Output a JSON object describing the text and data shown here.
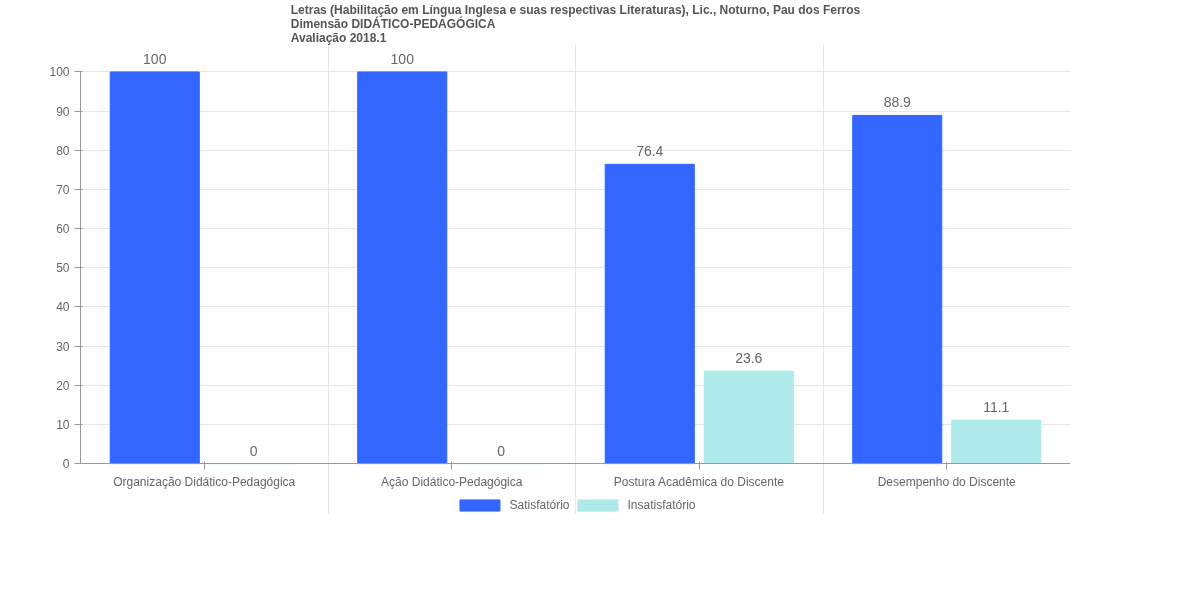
{
  "chart_data": {
    "type": "bar",
    "title": "Letras (Habilitação em Língua Inglesa e suas respectivas Literaturas), Lic., Noturno, Pau dos Ferros\nDimensão DIDÁTICO-PEDAGÓGICA\nAvaliação 2018.1",
    "categories": [
      "Organização Didático-Pedagógica",
      "Ação Didático-Pedagógica",
      "Postura Acadêmica do Discente",
      "Desempenho do Discente"
    ],
    "series": [
      {
        "name": "Satisfatório",
        "color": "#3366ff",
        "values": [
          100,
          100,
          76.4,
          88.9
        ]
      },
      {
        "name": "Insatisfatório",
        "color": "#aeeaea",
        "values": [
          0,
          0,
          23.6,
          11.1
        ]
      }
    ],
    "ylim": [
      0,
      100
    ],
    "yticks": [
      0,
      10,
      20,
      30,
      40,
      50,
      60,
      70,
      80,
      90,
      100
    ],
    "grid": true,
    "legend": "bottom",
    "data_labels": true
  }
}
